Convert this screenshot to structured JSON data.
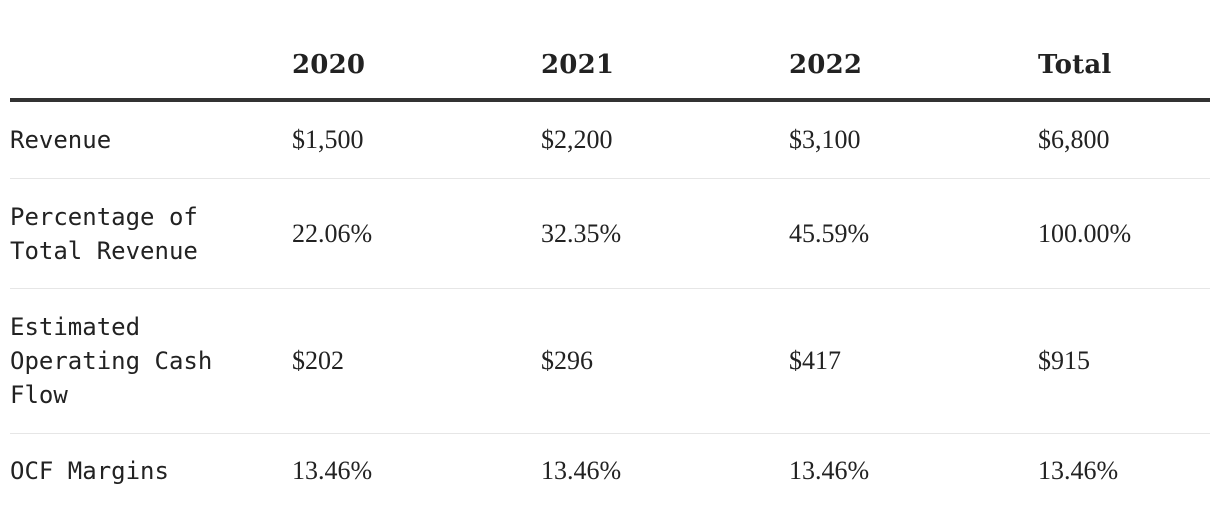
{
  "table": {
    "headers": [
      "",
      "2020",
      "2021",
      "2022",
      "Total"
    ],
    "rows": [
      {
        "label": "Revenue",
        "values": [
          "$1,500",
          "$2,200",
          "$3,100",
          "$6,800"
        ]
      },
      {
        "label": "Percentage of Total Revenue",
        "values": [
          "22.06%",
          "32.35%",
          "45.59%",
          "100.00%"
        ]
      },
      {
        "label": "Estimated Operating Cash Flow",
        "values": [
          "$202",
          "$296",
          "$417",
          "$915"
        ]
      },
      {
        "label": "OCF Margins",
        "values": [
          "13.46%",
          "13.46%",
          "13.46%",
          "13.46%"
        ]
      }
    ]
  },
  "colors": {
    "text": "#222222",
    "header_rule": "#333333",
    "row_divider": "#e6e6e6",
    "background": "#ffffff"
  }
}
